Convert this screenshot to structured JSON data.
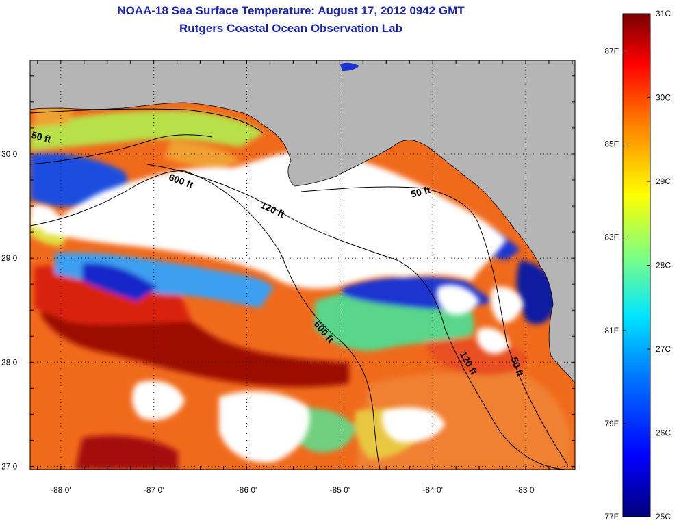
{
  "title": "NOAA-18 Sea Surface Temperature:  August 17, 2012 0942 GMT",
  "subtitle": "Rutgers Coastal Ocean Observation Lab",
  "map": {
    "lon_range": [
      -88.33,
      -82.47
    ],
    "lat_range": [
      26.97,
      30.9
    ],
    "x_ticks": [
      "-88 0'",
      "-87 0'",
      "-86 0'",
      "-85 0'",
      "-84 0'",
      "-83 0'"
    ],
    "y_ticks": [
      "30 0'",
      "29 0'",
      "28 0'",
      "27 0'"
    ],
    "grid": "dotted",
    "land_color": "#b5b5b5",
    "cloud_color": "#ffffff",
    "contour_labels": [
      "50 ft",
      "600 ft",
      "120 ft",
      "50 ft",
      "600 ft",
      "120 ft",
      "50 ft"
    ]
  },
  "colorbar": {
    "celsius_labels": [
      "31C",
      "30C",
      "29C",
      "28C",
      "27C",
      "26C",
      "25C"
    ],
    "fahrenheit_labels": [
      "87F",
      "85F",
      "83F",
      "81F",
      "79F",
      "77F"
    ],
    "colors": [
      "#000080",
      "#0000ff",
      "#0080ff",
      "#00ffff",
      "#80ff80",
      "#ffff00",
      "#ff8000",
      "#ff0000",
      "#800000"
    ]
  }
}
